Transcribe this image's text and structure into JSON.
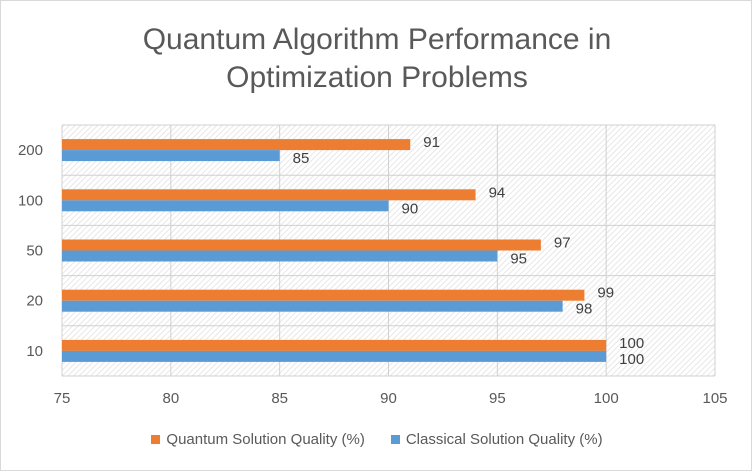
{
  "chart_data": {
    "type": "bar",
    "orientation": "horizontal",
    "title_lines": [
      "Quantum Algorithm Performance in",
      "Optimization Problems"
    ],
    "categories": [
      "10",
      "20",
      "50",
      "100",
      "200"
    ],
    "series": [
      {
        "name": "Quantum Solution Quality (%)",
        "color": "#ed7d31",
        "values": [
          100,
          99,
          97,
          94,
          91
        ]
      },
      {
        "name": "Classical Solution Quality (%)",
        "color": "#5b9bd5",
        "values": [
          100,
          98,
          95,
          90,
          85
        ]
      }
    ],
    "xlim": [
      75,
      105
    ],
    "x_ticks": [
      "75",
      "80",
      "85",
      "90",
      "95",
      "100",
      "105"
    ],
    "data_labels": true,
    "grid": true,
    "legend_position": "bottom",
    "plot_background": "hatched"
  }
}
